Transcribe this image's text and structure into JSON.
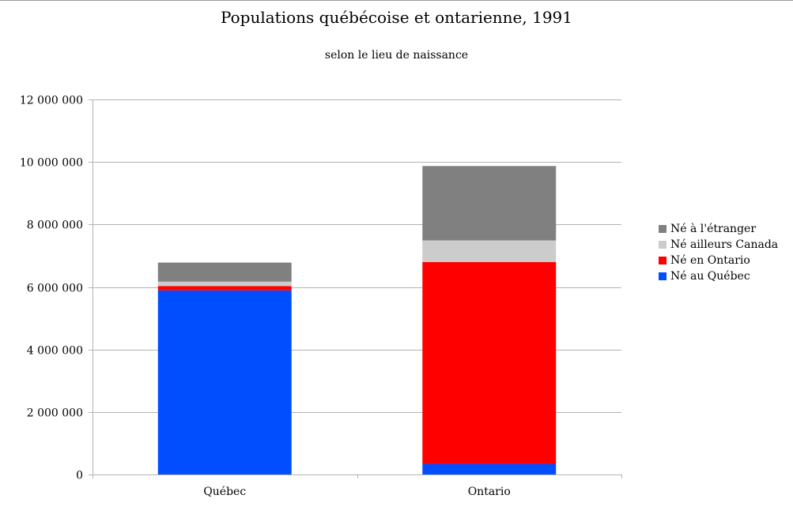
{
  "chart_data": {
    "type": "bar",
    "stacked": true,
    "title": "Populations québécoise et ontarienne, 1991",
    "subtitle": "selon le lieu de naissance",
    "xlabel": "",
    "ylabel": "",
    "ylim": [
      0,
      12000000
    ],
    "yticks": [
      0,
      2000000,
      4000000,
      6000000,
      8000000,
      10000000,
      12000000
    ],
    "ytick_labels": [
      "0",
      "2 000 000",
      "4 000 000",
      "6 000 000",
      "8 000 000",
      "10 000 000",
      "12 000 000"
    ],
    "grid": true,
    "legend_position": "right",
    "categories": [
      "Québec",
      "Ontario"
    ],
    "series": [
      {
        "name": "Né au Québec",
        "color": "#004eff",
        "values": [
          5890000,
          340000
        ]
      },
      {
        "name": "Né en Ontario",
        "color": "#ff0000",
        "values": [
          140000,
          6460000
        ]
      },
      {
        "name": "Né ailleurs Canada",
        "color": "#cccccc",
        "values": [
          140000,
          690000
        ]
      },
      {
        "name": "Né à l'étranger",
        "color": "#808080",
        "values": [
          610000,
          2380000
        ]
      }
    ]
  }
}
